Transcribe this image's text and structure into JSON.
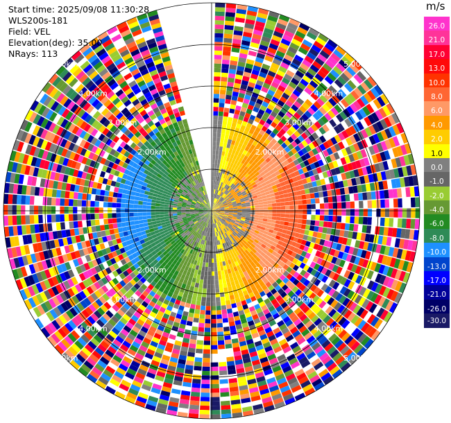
{
  "info": {
    "start_time": "Start time: 2025/09/08 11:30:28",
    "station": "WLS200s-181",
    "field": "Field: VEL",
    "elevation": "Elevation(deg): 35.00",
    "nrays": "NRays: 113"
  },
  "rings": {
    "labels": [
      "2.00km",
      "3.00km",
      "4.00km",
      "5.00km"
    ],
    "count": 5
  },
  "colorbar": {
    "unit": "m/s",
    "ticks": [
      "26.0",
      "21.0",
      "17.0",
      "13.0",
      "10.0",
      "8.0",
      "6.0",
      "4.0",
      "2.0",
      "1.0",
      "0.0",
      "-1.0",
      "-2.0",
      "-4.0",
      "-6.0",
      "-8.0",
      "-10.0",
      "-13.0",
      "-17.0",
      "-21.0",
      "-26.0",
      "-30.0"
    ],
    "colors": [
      "#ff33cc",
      "#ff3399",
      "#ff0033",
      "#ff0a0a",
      "#ff3300",
      "#ff6633",
      "#ff9966",
      "#ff9900",
      "#ffcc00",
      "#ffff00",
      "#808080",
      "#666666",
      "#99cc33",
      "#669933",
      "#228b22",
      "#2e8b57",
      "#1e90ff",
      "#0044cc",
      "#0000ff",
      "#000099",
      "#000066",
      "#1a1a66"
    ]
  }
}
